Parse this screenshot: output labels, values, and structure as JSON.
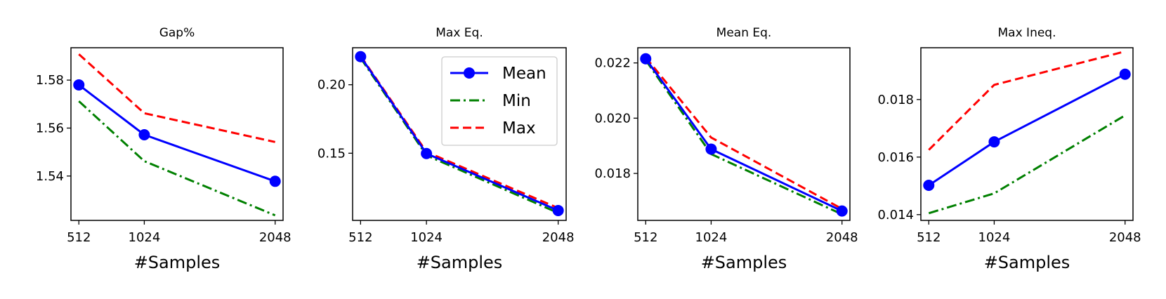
{
  "colors": {
    "mean": "#0000ff",
    "min": "#008000",
    "max": "#ff0000"
  },
  "legend": {
    "placement": "top-right of second panel",
    "entries": [
      {
        "key": "mean",
        "label": "Mean"
      },
      {
        "key": "min",
        "label": "Min"
      },
      {
        "key": "max",
        "label": "Max"
      }
    ]
  },
  "chart_data": [
    {
      "type": "line",
      "title": "Gap%",
      "xlabel": "#Samples",
      "ylabel": "",
      "x": [
        512,
        1024,
        2048
      ],
      "x_ticks": [
        "512",
        "1024",
        "2048"
      ],
      "y_ticks": [
        1.54,
        1.56,
        1.58
      ],
      "y_tick_labels": [
        "1.54",
        "1.56",
        "1.58"
      ],
      "xlim": [
        450,
        2110
      ],
      "ylim": [
        1.5215,
        1.5935
      ],
      "series": [
        {
          "key": "mean",
          "name": "Mean",
          "values": [
            1.578,
            1.5572,
            1.5378
          ]
        },
        {
          "key": "min",
          "name": "Min",
          "values": [
            1.5712,
            1.5462,
            1.5236
          ]
        },
        {
          "key": "max",
          "name": "Max",
          "values": [
            1.5908,
            1.5662,
            1.5542
          ]
        }
      ]
    },
    {
      "type": "line",
      "title": "Max Eq.",
      "xlabel": "#Samples",
      "ylabel": "",
      "x": [
        512,
        1024,
        2048
      ],
      "x_ticks": [
        "512",
        "1024",
        "2048"
      ],
      "y_ticks": [
        0.15,
        0.2
      ],
      "y_tick_labels": [
        "0.15",
        "0.20"
      ],
      "xlim": [
        450,
        2110
      ],
      "ylim": [
        0.101,
        0.227
      ],
      "series": [
        {
          "key": "mean",
          "name": "Mean",
          "values": [
            0.2205,
            0.1498,
            0.1082
          ]
        },
        {
          "key": "min",
          "name": "Min",
          "values": [
            0.2195,
            0.1485,
            0.1065
          ]
        },
        {
          "key": "max",
          "name": "Max",
          "values": [
            0.221,
            0.151,
            0.11
          ]
        }
      ]
    },
    {
      "type": "line",
      "title": "Mean Eq.",
      "xlabel": "#Samples",
      "ylabel": "",
      "x": [
        512,
        1024,
        2048
      ],
      "x_ticks": [
        "512",
        "1024",
        "2048"
      ],
      "y_ticks": [
        0.018,
        0.02,
        0.022
      ],
      "y_tick_labels": [
        "0.018",
        "0.020",
        "0.022"
      ],
      "xlim": [
        450,
        2110
      ],
      "ylim": [
        0.0163,
        0.02255
      ],
      "series": [
        {
          "key": "mean",
          "name": "Mean",
          "values": [
            0.02215,
            0.01888,
            0.01664
          ]
        },
        {
          "key": "min",
          "name": "Min",
          "values": [
            0.0221,
            0.0187,
            0.01652
          ]
        },
        {
          "key": "max",
          "name": "Max",
          "values": [
            0.0222,
            0.0193,
            0.01672
          ]
        }
      ]
    },
    {
      "type": "line",
      "title": "Max Ineq.",
      "xlabel": "#Samples",
      "ylabel": "",
      "x": [
        512,
        1024,
        2048
      ],
      "x_ticks": [
        "512",
        "1024",
        "2048"
      ],
      "y_ticks": [
        0.014,
        0.016,
        0.018
      ],
      "y_tick_labels": [
        "0.014",
        "0.016",
        "0.018"
      ],
      "xlim": [
        450,
        2110
      ],
      "ylim": [
        0.0138,
        0.0198
      ],
      "series": [
        {
          "key": "mean",
          "name": "Mean",
          "values": [
            0.01502,
            0.01653,
            0.01888
          ]
        },
        {
          "key": "min",
          "name": "Min",
          "values": [
            0.01405,
            0.01474,
            0.01745
          ]
        },
        {
          "key": "max",
          "name": "Max",
          "values": [
            0.01625,
            0.01851,
            0.01967
          ]
        }
      ]
    }
  ]
}
